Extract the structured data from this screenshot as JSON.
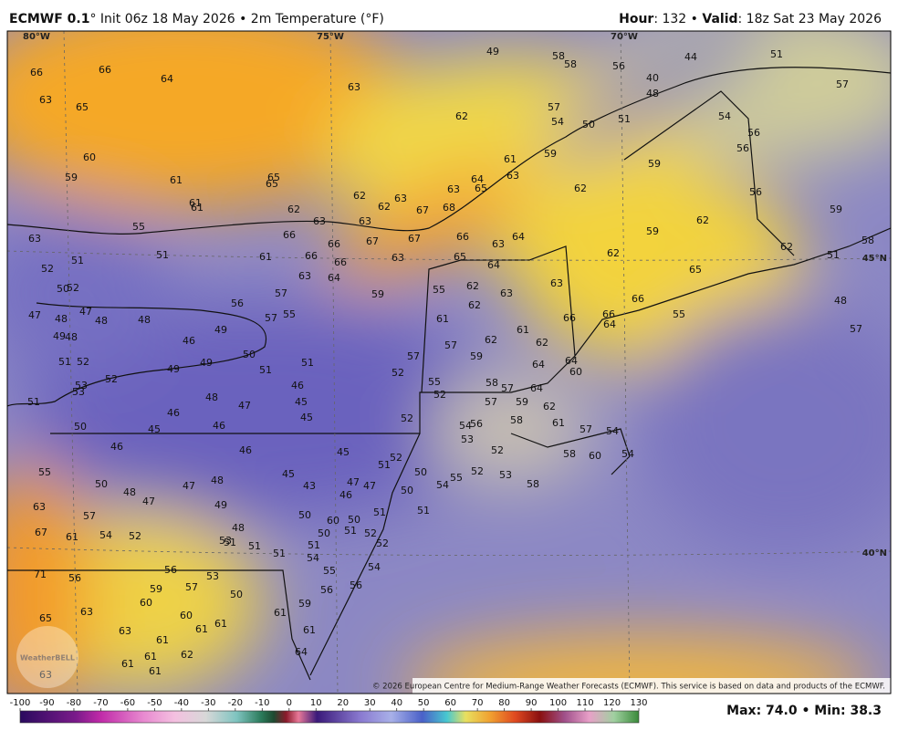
{
  "header": {
    "model": "ECMWF 0.1",
    "run": "° Init 06z 18 May 2026 • 2m Temperature (°F)",
    "hour_label": "Hour",
    "hour": ": 132 • ",
    "valid_label": "Valid",
    "valid": ": 18z Sat 23 May 2026"
  },
  "grid_labels": [
    "80°W",
    "75°W",
    "70°W",
    "45°N",
    "40°N"
  ],
  "map_values": [
    66,
    66,
    64,
    63,
    65,
    63,
    49,
    58,
    58,
    56,
    40,
    44,
    51,
    57,
    48,
    62,
    57,
    54,
    50,
    51,
    54,
    56,
    56,
    60,
    59,
    61,
    65,
    65,
    59,
    61,
    63,
    59,
    62,
    56,
    64,
    65,
    63,
    62,
    63,
    61,
    61,
    62,
    62,
    67,
    68,
    59,
    62,
    55,
    63,
    63,
    59,
    63,
    66,
    67,
    67,
    66,
    66,
    63,
    64,
    51,
    51,
    61,
    66,
    66,
    63,
    65,
    62,
    62,
    58,
    51,
    64,
    65,
    52,
    63,
    64,
    63,
    55,
    62,
    63,
    59,
    50,
    52,
    66,
    48,
    56,
    57,
    47,
    48,
    47,
    48,
    48,
    62,
    61,
    66,
    66,
    64,
    57,
    55,
    55,
    57,
    49,
    49,
    48,
    46,
    61,
    62,
    62,
    57,
    50,
    51,
    52,
    57,
    59,
    49,
    49,
    51,
    51,
    64,
    64,
    60,
    52,
    53,
    53,
    52,
    46,
    48,
    58,
    57,
    55,
    52,
    64,
    45,
    47,
    51,
    57,
    59,
    62,
    46,
    45,
    52,
    58,
    61,
    50,
    45,
    46,
    54,
    56,
    57,
    54,
    53,
    46,
    46,
    45,
    52,
    52,
    58,
    60,
    54,
    51,
    50,
    52,
    53,
    55,
    54,
    58,
    55,
    45,
    50,
    48,
    47,
    43,
    47,
    47,
    46,
    48,
    50,
    63,
    47,
    49,
    57,
    50,
    60,
    51,
    51,
    50,
    48,
    54,
    52,
    67,
    61,
    50,
    51,
    52,
    53,
    51,
    51,
    51,
    52,
    51,
    54,
    54,
    55,
    56,
    53,
    71,
    56,
    59,
    57,
    56,
    56,
    50,
    60,
    59,
    63,
    60,
    61,
    65,
    63,
    61,
    61,
    61,
    61,
    62,
    64,
    61,
    61,
    63,
    61
  ],
  "watermark": "WeatherBELL",
  "copyright": "© 2026 European Centre for Medium-Range Weather Forecasts (ECMWF). This service is based on data and products of the ECMWF.",
  "colorbar": {
    "ticks": [
      -100,
      -90,
      -80,
      -70,
      -60,
      -50,
      -40,
      -30,
      -20,
      -10,
      0,
      10,
      20,
      30,
      40,
      50,
      60,
      70,
      80,
      90,
      100,
      110,
      120,
      130
    ],
    "range": [
      -100,
      130
    ]
  },
  "stats": "Max: 74.0 • Min: 38.3"
}
